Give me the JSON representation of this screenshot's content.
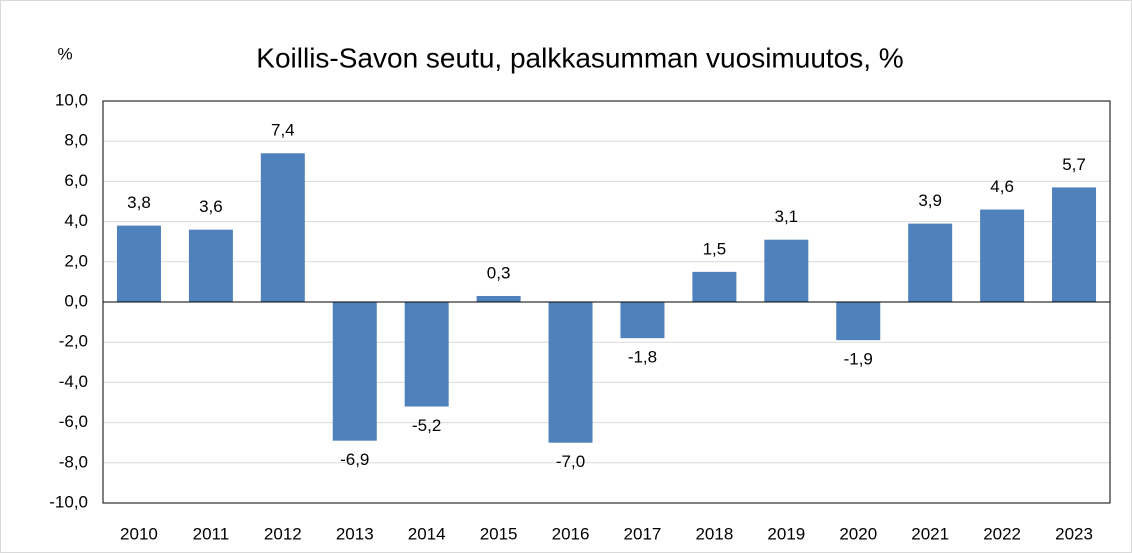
{
  "chart_data": {
    "type": "bar",
    "title": "Koillis-Savon seutu, palkkasumman vuosimuutos, %",
    "y_label": "%",
    "categories": [
      "2010",
      "2011",
      "2012",
      "2013",
      "2014",
      "2015",
      "2016",
      "2017",
      "2018",
      "2019",
      "2020",
      "2021",
      "2022",
      "2023"
    ],
    "values": [
      3.8,
      3.6,
      7.4,
      -6.9,
      -5.2,
      0.3,
      -7.0,
      -1.8,
      1.5,
      3.1,
      -1.9,
      3.9,
      4.6,
      5.7
    ],
    "value_labels": [
      "3,8",
      "3,6",
      "7,4",
      "-6,9",
      "-5,2",
      "0,3",
      "-7,0",
      "-1,8",
      "1,5",
      "3,1",
      "-1,9",
      "3,9",
      "4,6",
      "5,7"
    ],
    "color": "#4f81bd",
    "ylim": [
      -10,
      10
    ],
    "yticks": [
      {
        "value": -10,
        "label": "-10,0"
      },
      {
        "value": -8,
        "label": "-8,0"
      },
      {
        "value": -6,
        "label": "-6,0"
      },
      {
        "value": -4,
        "label": "-4,0"
      },
      {
        "value": -2,
        "label": "-2,0"
      },
      {
        "value": 0,
        "label": "0,0"
      },
      {
        "value": 2,
        "label": "2,0"
      },
      {
        "value": 4,
        "label": "4,0"
      },
      {
        "value": 6,
        "label": "6,0"
      },
      {
        "value": 8,
        "label": "8,0"
      },
      {
        "value": 10,
        "label": "10,0"
      }
    ],
    "grid": true
  }
}
